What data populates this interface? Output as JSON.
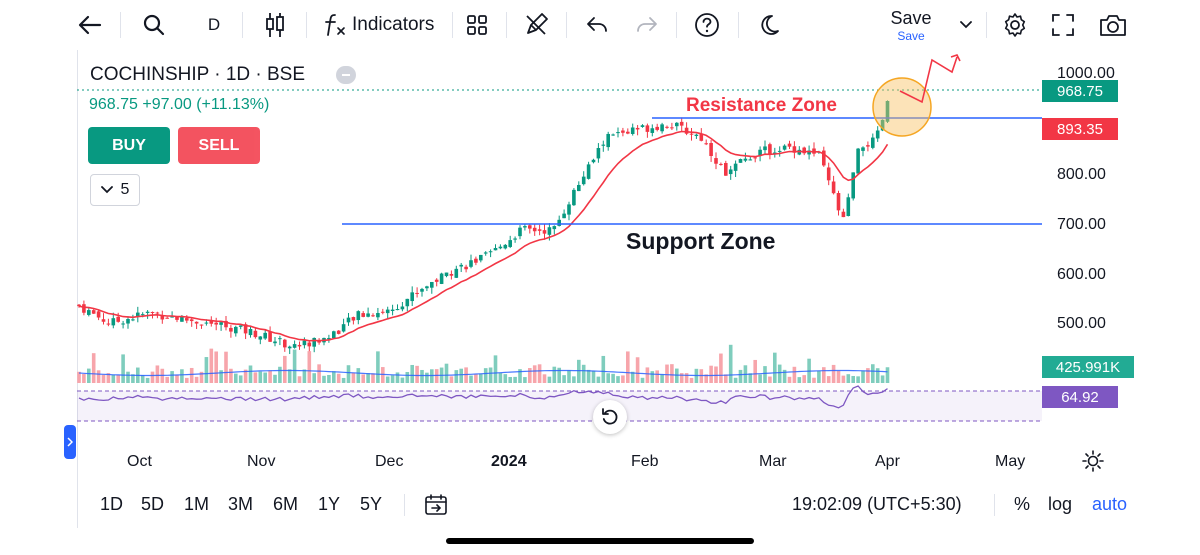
{
  "toolbar": {
    "interval": "D",
    "indicators_label": "Indicators",
    "save_label": "Save",
    "save_sublabel": "Save"
  },
  "legend": {
    "symbol": "COCHINSHIP · 1D · BSE",
    "price_change": "968.75 +97.00 (+11.13%)",
    "buy_label": "BUY",
    "sell_label": "SELL",
    "collapse_count": "5"
  },
  "annotations": {
    "resistance": "Resistance Zone",
    "support": "Support Zone"
  },
  "price_axis": {
    "ticks": [
      "1000.00",
      "900.00",
      "800.00",
      "700.00",
      "600.00",
      "500.00"
    ],
    "last_price": "968.75",
    "resistance_level": "893.35",
    "volume": "425.991K",
    "rsi": "64.92"
  },
  "time_axis": {
    "ticks": [
      "Oct",
      "Nov",
      "Dec",
      "2024",
      "Feb",
      "Mar",
      "Apr",
      "May"
    ]
  },
  "ranges": [
    "1D",
    "5D",
    "1M",
    "3M",
    "6M",
    "1Y",
    "5Y"
  ],
  "status": {
    "clock": "19:02:09 (UTC+5:30)",
    "percent": "%",
    "log": "log",
    "auto": "auto"
  },
  "colors": {
    "up": "#089981",
    "down": "#f23645",
    "ma": "#f23645",
    "hline": "#2962ff",
    "rsi": "#7e57c2",
    "accent": "#2962ff"
  },
  "chart_data": {
    "type": "candlestick",
    "symbol": "COCHINSHIP",
    "interval": "1D",
    "exchange": "BSE",
    "y_range": [
      470,
      1030
    ],
    "price_ticks": [
      1000,
      900,
      800,
      700,
      600,
      500
    ],
    "last_close": 968.75,
    "change": 97.0,
    "change_pct": 11.13,
    "horizontal_lines": [
      {
        "label": "Resistance Zone",
        "value": 893.35
      },
      {
        "label": "Support Zone",
        "value": 700
      }
    ],
    "close_path": [
      [
        "2023-09-14",
        555
      ],
      [
        "2023-09-22",
        520
      ],
      [
        "2023-10-02",
        540
      ],
      [
        "2023-10-12",
        525
      ],
      [
        "2023-10-20",
        515
      ],
      [
        "2023-10-28",
        500
      ],
      [
        "2023-11-06",
        475
      ],
      [
        "2023-11-14",
        490
      ],
      [
        "2023-11-22",
        535
      ],
      [
        "2023-11-30",
        545
      ],
      [
        "2023-12-08",
        590
      ],
      [
        "2023-12-16",
        625
      ],
      [
        "2023-12-24",
        650
      ],
      [
        "2024-01-01",
        700
      ],
      [
        "2024-01-09",
        700
      ],
      [
        "2024-01-13",
        760
      ],
      [
        "2024-01-22",
        880
      ],
      [
        "2024-01-30",
        895
      ],
      [
        "2024-02-06",
        905
      ],
      [
        "2024-02-14",
        880
      ],
      [
        "2024-02-20",
        810
      ],
      [
        "2024-02-28",
        850
      ],
      [
        "2024-03-07",
        860
      ],
      [
        "2024-03-14",
        845
      ],
      [
        "2024-03-20",
        715
      ],
      [
        "2024-03-24",
        860
      ],
      [
        "2024-03-28",
        872
      ],
      [
        "2024-04-01",
        968.75
      ]
    ],
    "volume_last": "425.991K",
    "rsi_last": 64.92
  }
}
